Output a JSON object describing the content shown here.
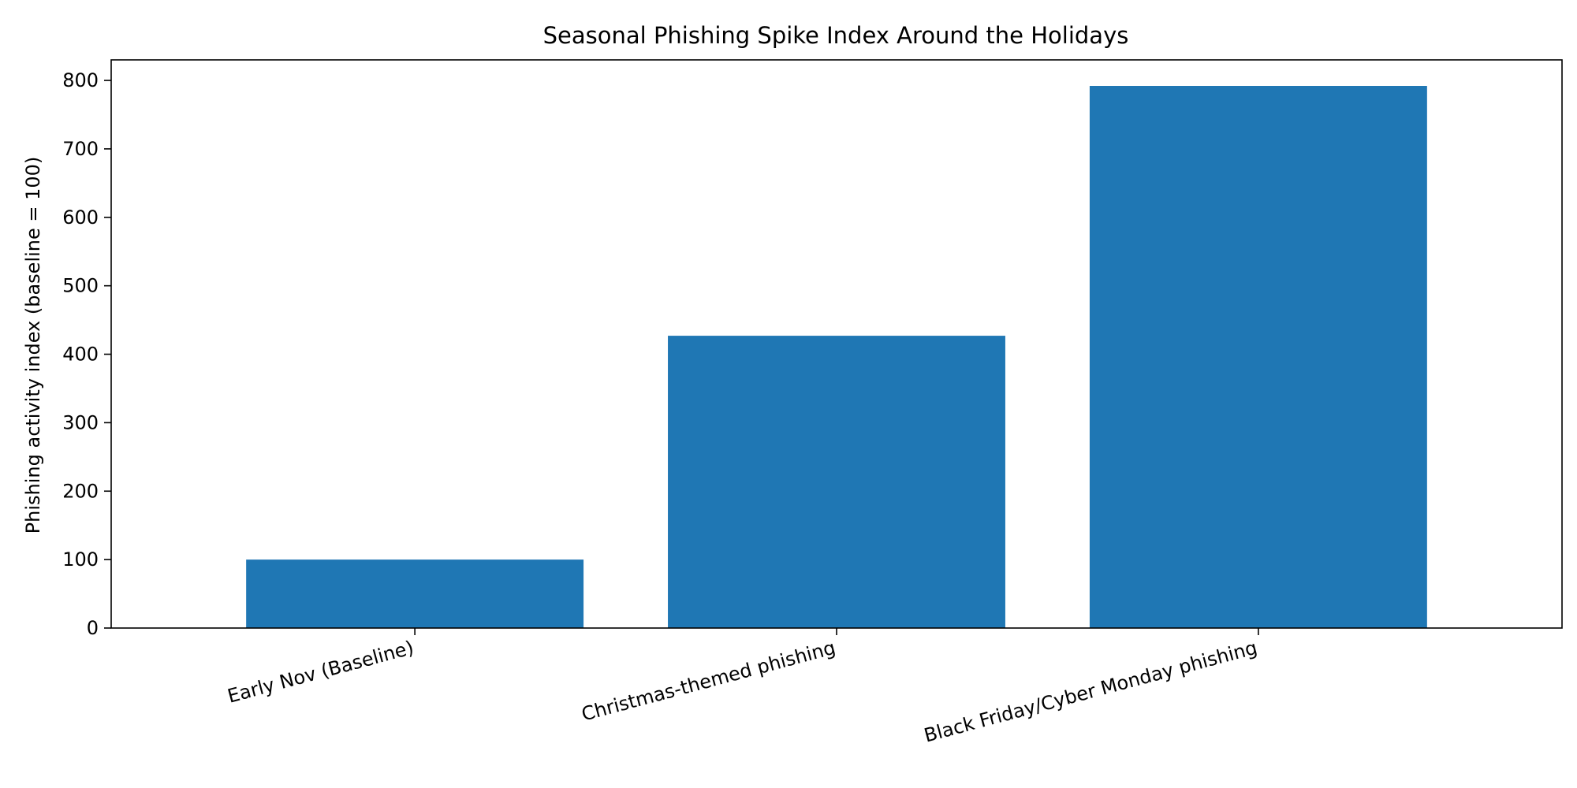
{
  "chart_data": {
    "type": "bar",
    "title": "Seasonal Phishing Spike Index Around the Holidays",
    "xlabel": "",
    "ylabel": "Phishing activity index (baseline = 100)",
    "categories": [
      "Early Nov (Baseline)",
      "Christmas-themed phishing",
      "Black Friday/Cyber Monday phishing"
    ],
    "values": [
      100,
      427,
      792
    ],
    "ylim": [
      0,
      830
    ],
    "yticks": [
      0,
      100,
      200,
      300,
      400,
      500,
      600,
      700,
      800
    ],
    "grid": false,
    "legend": "none",
    "bar_color": "#1f77b4"
  }
}
